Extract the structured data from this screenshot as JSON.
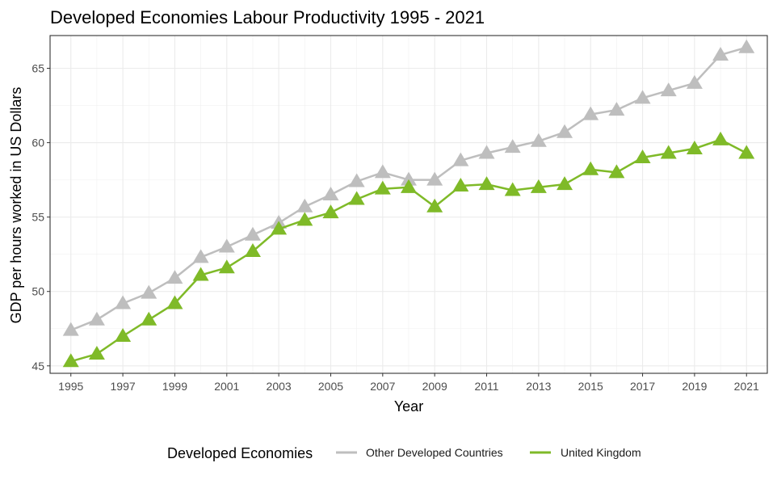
{
  "chart_data": {
    "type": "line",
    "title": "Developed Economies Labour Productivity 1995 - 2021",
    "xlabel": "Year",
    "ylabel": "GDP per hours worked in US Dollars",
    "x": [
      1995,
      1996,
      1997,
      1998,
      1999,
      2000,
      2001,
      2002,
      2003,
      2004,
      2005,
      2006,
      2007,
      2008,
      2009,
      2010,
      2011,
      2012,
      2013,
      2014,
      2015,
      2016,
      2017,
      2018,
      2019,
      2020,
      2021
    ],
    "x_ticks": [
      "1995",
      "1997",
      "1999",
      "2001",
      "2003",
      "2005",
      "2007",
      "2009",
      "2011",
      "2013",
      "2015",
      "2017",
      "2019",
      "2021"
    ],
    "y_ticks": [
      "45",
      "50",
      "55",
      "60",
      "65"
    ],
    "ylim": [
      44.5,
      67.2
    ],
    "xlim": [
      1994.2,
      2021.8
    ],
    "grid": true,
    "marker": "triangle",
    "legend": {
      "title": "Developed Economies",
      "placement": "bottom"
    },
    "series": [
      {
        "name": "Other Developed Countries",
        "color": "#bebebe",
        "values": [
          47.4,
          48.1,
          49.2,
          49.9,
          50.9,
          52.3,
          53.0,
          53.8,
          54.6,
          55.7,
          56.5,
          57.4,
          58.0,
          57.5,
          57.5,
          58.8,
          59.3,
          59.7,
          60.1,
          60.7,
          61.9,
          62.2,
          63.0,
          63.5,
          64.0,
          65.9,
          66.4
        ]
      },
      {
        "name": "United Kingdom",
        "color": "#7fba28",
        "values": [
          45.3,
          45.8,
          47.0,
          48.1,
          49.2,
          51.1,
          51.6,
          52.7,
          54.2,
          54.8,
          55.3,
          56.2,
          56.9,
          57.0,
          55.7,
          57.1,
          57.2,
          56.8,
          57.0,
          57.2,
          58.2,
          58.0,
          59.0,
          59.3,
          59.6,
          60.2,
          59.3
        ]
      }
    ]
  }
}
